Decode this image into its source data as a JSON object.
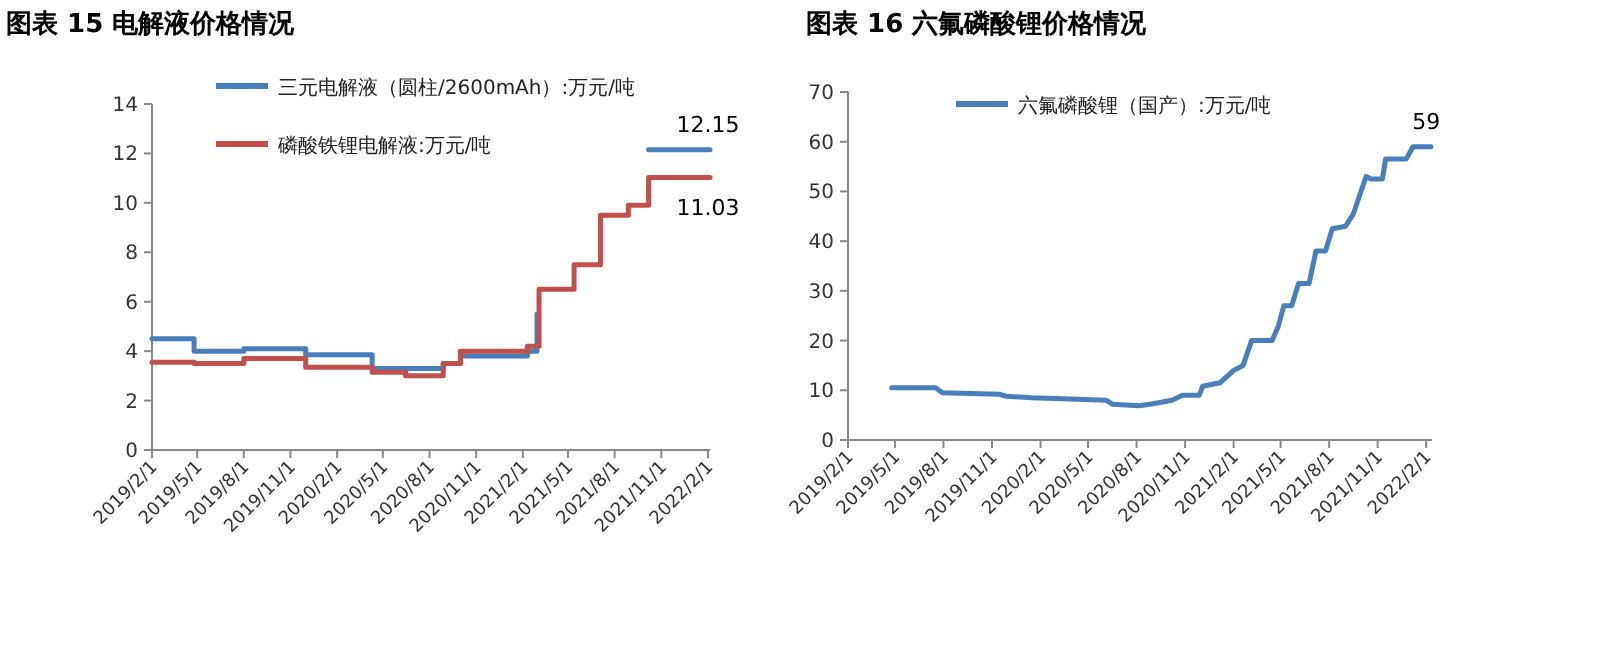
{
  "chart_data": [
    {
      "type": "step",
      "title": "图表 15  电解液价格情况",
      "legend": "top left",
      "xlim": [
        "2019-02-01",
        "2022-02-05"
      ],
      "xticks": [
        {
          "value": "2019-02-01",
          "label": "2019/2/1"
        },
        {
          "value": "2019-05-01",
          "label": "2019/5/1"
        },
        {
          "value": "2019-08-01",
          "label": "2019/8/1"
        },
        {
          "value": "2019-11-01",
          "label": "2019/11/1"
        },
        {
          "value": "2020-02-01",
          "label": "2020/2/1"
        },
        {
          "value": "2020-05-01",
          "label": "2020/5/1"
        },
        {
          "value": "2020-08-01",
          "label": "2020/8/1"
        },
        {
          "value": "2020-11-01",
          "label": "2020/11/1"
        },
        {
          "value": "2021-02-01",
          "label": "2021/2/1"
        },
        {
          "value": "2021-05-01",
          "label": "2021/5/1"
        },
        {
          "value": "2021-08-01",
          "label": "2021/8/1"
        },
        {
          "value": "2021-11-01",
          "label": "2021/11/1"
        },
        {
          "value": "2022-02-01",
          "label": "2022/2/1"
        }
      ],
      "ylim": [
        0,
        14
      ],
      "yticks": [
        0,
        2,
        4,
        6,
        8,
        10,
        12,
        14
      ],
      "annotations": [
        {
          "text": "12.15",
          "x": "2022-02-01",
          "y": 12.15
        },
        {
          "text": "11.03",
          "x": "2022-02-01",
          "y": 11.03
        }
      ],
      "series": [
        {
          "name": "三元电解液（圆柱/2600mAh）:万元/吨",
          "color": "#4a7ebb",
          "x": [
            "2019-02-01",
            "2019-04-25",
            "2019-08-01",
            "2019-12-01",
            "2020-04-10",
            "2020-08-28",
            "2020-10-01",
            "2021-02-10",
            "2021-03-01",
            "2021-05-13",
            "2021-07-04",
            "2021-08-28",
            "2021-10-07",
            "2022-02-05"
          ],
          "values": [
            4.5,
            4.0,
            4.1,
            3.85,
            3.3,
            3.5,
            3.8,
            4.0,
            5.5,
            null,
            null,
            null,
            12.15,
            12.15
          ]
        },
        {
          "name": "磷酸铁锂电解液:万元/吨",
          "color": "#c0504d",
          "x": [
            "2019-02-01",
            "2019-04-25",
            "2019-08-01",
            "2019-12-01",
            "2020-04-10",
            "2020-06-15",
            "2020-08-28",
            "2020-10-01",
            "2021-02-10",
            "2021-03-05",
            "2021-05-13",
            "2021-07-04",
            "2021-08-28",
            "2021-10-07",
            "2022-02-05"
          ],
          "values": [
            3.55,
            3.5,
            3.7,
            3.35,
            3.15,
            3.0,
            3.5,
            4.0,
            4.2,
            6.5,
            7.5,
            9.5,
            9.9,
            11.03,
            11.03
          ]
        }
      ]
    },
    {
      "type": "line",
      "title": "图表 16  六氟磷酸锂价格情况",
      "legend": "top left",
      "xlim": [
        "2019-02-01",
        "2022-02-12"
      ],
      "xticks": [
        {
          "value": "2019-02-01",
          "label": "2019/2/1"
        },
        {
          "value": "2019-05-01",
          "label": "2019/5/1"
        },
        {
          "value": "2019-08-01",
          "label": "2019/8/1"
        },
        {
          "value": "2019-11-01",
          "label": "2019/11/1"
        },
        {
          "value": "2020-02-01",
          "label": "2020/2/1"
        },
        {
          "value": "2020-05-01",
          "label": "2020/5/1"
        },
        {
          "value": "2020-08-01",
          "label": "2020/8/1"
        },
        {
          "value": "2020-11-01",
          "label": "2020/11/1"
        },
        {
          "value": "2021-02-01",
          "label": "2021/2/1"
        },
        {
          "value": "2021-05-01",
          "label": "2021/5/1"
        },
        {
          "value": "2021-08-01",
          "label": "2021/8/1"
        },
        {
          "value": "2021-11-01",
          "label": "2021/11/1"
        },
        {
          "value": "2022-02-01",
          "label": "2022/2/1"
        }
      ],
      "ylim": [
        0,
        70
      ],
      "yticks": [
        0,
        10,
        20,
        30,
        40,
        50,
        60,
        70
      ],
      "annotations": [
        {
          "text": "59",
          "x": "2022-02-01",
          "y": 59
        }
      ],
      "series": [
        {
          "name": "六氟磷酸锂（国产）:万元/吨",
          "color": "#4a7ebb",
          "x": [
            "2019-04-25",
            "2019-07-17",
            "2019-07-30",
            "2019-11-15",
            "2019-11-28",
            "2020-01-15",
            "2020-04-13",
            "2020-06-04",
            "2020-06-16",
            "2020-08-06",
            "2020-09-01",
            "2020-10-07",
            "2020-10-27",
            "2020-11-28",
            "2020-12-04",
            "2021-01-06",
            "2021-02-01",
            "2021-02-19",
            "2021-03-07",
            "2021-04-15",
            "2021-04-27",
            "2021-05-07",
            "2021-05-22",
            "2021-06-04",
            "2021-06-24",
            "2021-07-07",
            "2021-07-25",
            "2021-08-07",
            "2021-09-01",
            "2021-09-16",
            "2021-10-10",
            "2021-10-19",
            "2021-11-10",
            "2021-11-16",
            "2021-12-25",
            "2022-01-07",
            "2022-02-10"
          ],
          "values": [
            10.5,
            10.5,
            9.5,
            9.2,
            8.8,
            8.5,
            8.2,
            8.0,
            7.2,
            6.9,
            7.3,
            8.0,
            9.0,
            9.0,
            10.8,
            11.5,
            14,
            15,
            20,
            20,
            23,
            27,
            27,
            31.5,
            31.5,
            38,
            38,
            42.5,
            43,
            45.5,
            53,
            52.5,
            52.5,
            56.5,
            56.5,
            59,
            59
          ]
        }
      ]
    }
  ]
}
